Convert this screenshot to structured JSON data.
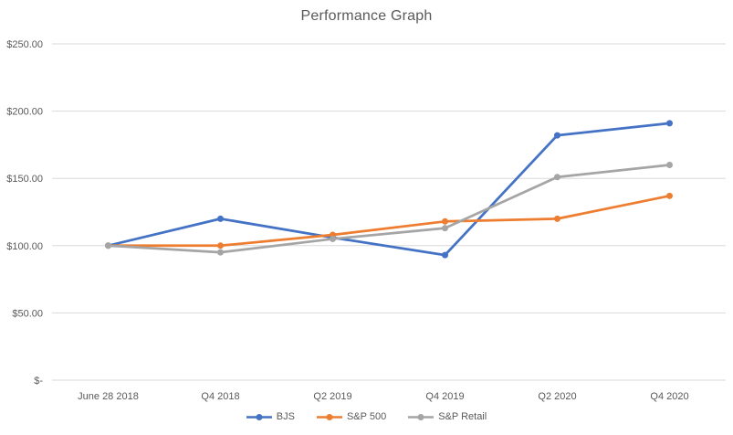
{
  "chart_data": {
    "type": "line",
    "title": "Performance Graph",
    "xlabel": "",
    "ylabel": "",
    "categories": [
      "June 28 2018",
      "Q4 2018",
      "Q2 2019",
      "Q4 2019",
      "Q2 2020",
      "Q4 2020"
    ],
    "series": [
      {
        "name": "BJS",
        "color": "#4472C4",
        "values": [
          100,
          120,
          106,
          93,
          182,
          191
        ]
      },
      {
        "name": "S&P 500",
        "color": "#ED7D31",
        "values": [
          100,
          100,
          108,
          118,
          120,
          137
        ]
      },
      {
        "name": "S&P Retail",
        "color": "#A5A5A5",
        "values": [
          100,
          95,
          105,
          113,
          151,
          160
        ]
      }
    ],
    "y_axis": {
      "min": 0,
      "max": 250,
      "step": 50,
      "ticks": [
        {
          "label": "$250.00",
          "value": 250
        },
        {
          "label": "$200.00",
          "value": 200
        },
        {
          "label": "$150.00",
          "value": 150
        },
        {
          "label": "$100.00",
          "value": 100
        },
        {
          "label": "$50.00",
          "value": 50
        },
        {
          "label": "$-",
          "value": 0
        }
      ]
    },
    "ylim": [
      0,
      250
    ],
    "grid": "horizontal",
    "legend_position": "bottom",
    "marker": "circle",
    "colors": {
      "gridline": "#D9D9D9",
      "axis_line": "#D9D9D9",
      "text": "#595959",
      "background": "#FFFFFF"
    }
  }
}
